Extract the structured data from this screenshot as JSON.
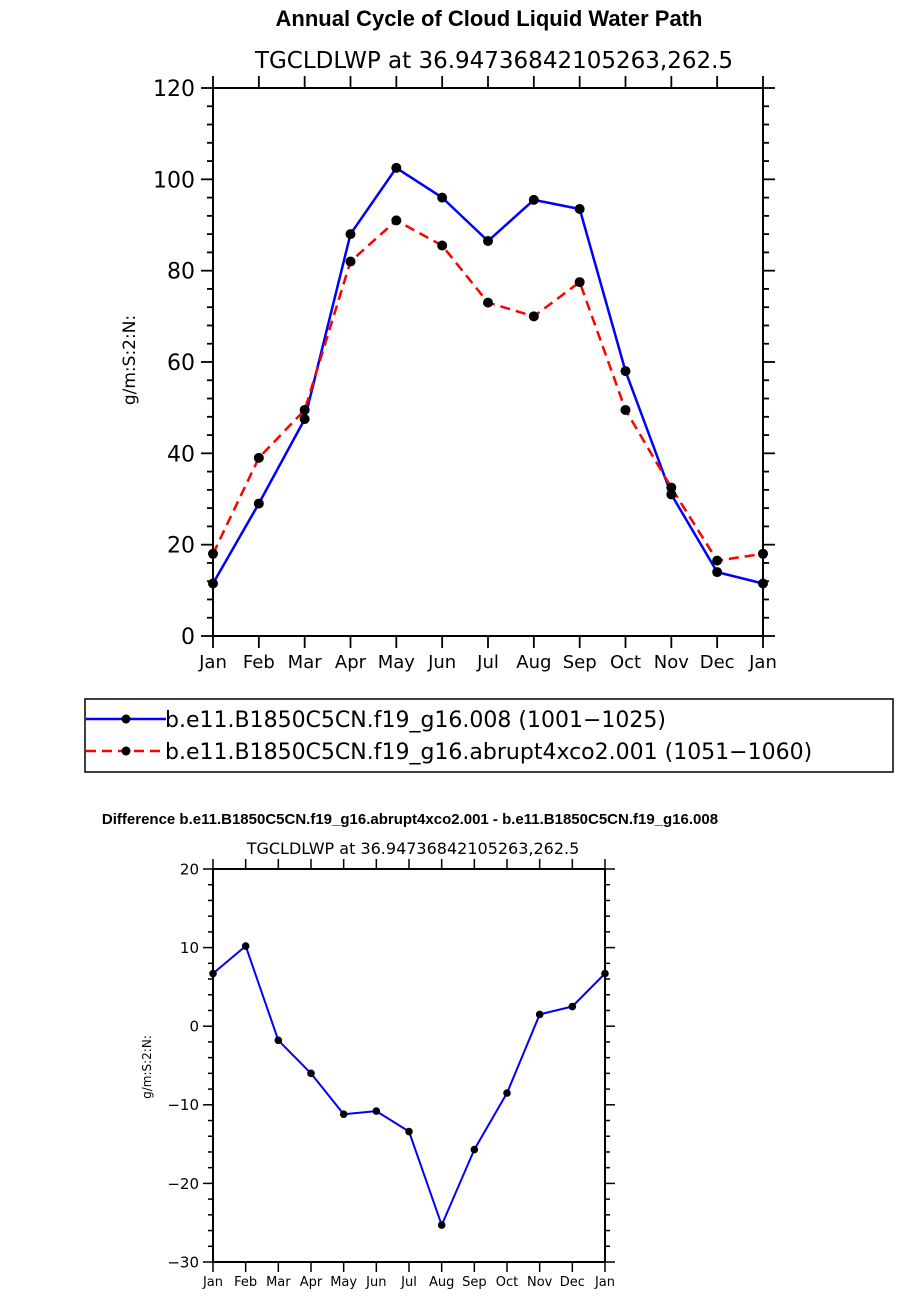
{
  "chart_data": [
    {
      "type": "line",
      "title": "Annual Cycle of Cloud Liquid Water Path",
      "subtitle": "TGCLDLWP  at  36.94736842105263,262.5",
      "xlabel": "",
      "ylabel": "g/m:S:2:N:",
      "categories": [
        "Jan",
        "Feb",
        "Mar",
        "Apr",
        "May",
        "Jun",
        "Jul",
        "Aug",
        "Sep",
        "Oct",
        "Nov",
        "Dec",
        "Jan"
      ],
      "ylim": [
        0,
        120
      ],
      "yticks": [
        0,
        20,
        40,
        60,
        80,
        100,
        120
      ],
      "series": [
        {
          "name": "b.e11.B1850C5CN.f19_g16.008 (1001−1025)",
          "color": "#0000ff",
          "dash": "solid",
          "values": [
            11.5,
            29,
            47.5,
            88,
            102.5,
            96,
            86.5,
            95.5,
            93.5,
            58,
            31,
            14,
            11.5
          ]
        },
        {
          "name": "b.e11.B1850C5CN.f19_g16.abrupt4xco2.001 (1051−1060)",
          "color": "#ff0000",
          "dash": "dashed",
          "values": [
            18,
            39,
            49.5,
            82,
            91,
            85.5,
            73,
            70,
            77.5,
            49.5,
            32.5,
            16.5,
            18
          ]
        }
      ]
    },
    {
      "type": "line",
      "title": "Difference b.e11.B1850C5CN.f19_g16.abrupt4xco2.001 - b.e11.B1850C5CN.f19_g16.008",
      "subtitle": "TGCLDLWP  at  36.94736842105263,262.5",
      "xlabel": "",
      "ylabel": "g/m:S:2:N:",
      "categories": [
        "Jan",
        "Feb",
        "Mar",
        "Apr",
        "May",
        "Jun",
        "Jul",
        "Aug",
        "Sep",
        "Oct",
        "Nov",
        "Dec",
        "Jan"
      ],
      "ylim": [
        -30,
        20
      ],
      "yticks": [
        -30,
        -20,
        -10,
        0,
        10,
        20
      ],
      "series": [
        {
          "name": "Difference",
          "color": "#0000ff",
          "dash": "solid",
          "values": [
            6.7,
            10.2,
            -1.8,
            -6.0,
            -11.2,
            -10.8,
            -13.4,
            -25.3,
            -15.7,
            -8.5,
            1.5,
            2.5,
            6.7
          ]
        }
      ]
    }
  ]
}
